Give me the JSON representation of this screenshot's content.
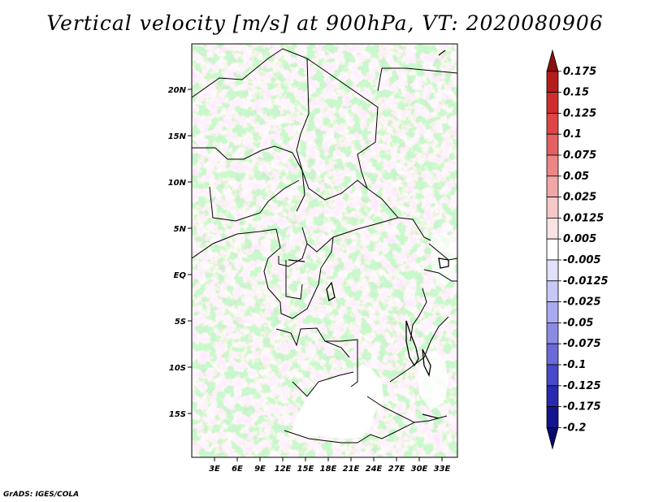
{
  "title": "Vertical velocity [m/s] at 900hPa, VT: 2020080906",
  "map": {
    "lat_labels": [
      "20N",
      "15N",
      "10N",
      "5N",
      "EQ",
      "5S",
      "10S",
      "15S"
    ],
    "lon_labels": [
      "3E",
      "6E",
      "9E",
      "12E",
      "15E",
      "18E",
      "21E",
      "24E",
      "27E",
      "30E",
      "33E"
    ],
    "lat_range": [
      -20,
      25
    ],
    "lon_range": [
      0,
      35
    ]
  },
  "colorbar": {
    "labels": [
      "0.175",
      "0.15",
      "0.125",
      "0.1",
      "0.075",
      "0.05",
      "0.025",
      "0.0125",
      "0.005",
      "-0.005",
      "-0.0125",
      "-0.025",
      "-0.05",
      "-0.075",
      "-0.1",
      "-0.125",
      "-0.175",
      "-0.2"
    ],
    "colors": [
      "#8b0f0f",
      "#b51c1c",
      "#cf2d2d",
      "#df4545",
      "#e56161",
      "#ec8585",
      "#f2a7a7",
      "#f7c8c8",
      "#fbe3e3",
      "#ffffff",
      "#e1e1fb",
      "#c8c8f6",
      "#aaaaf0",
      "#8b8be6",
      "#6a6ad8",
      "#4848c8",
      "#2828b0",
      "#14148c",
      "#0a0a6e"
    ]
  },
  "credit": "GrADS: IGES/COLA"
}
